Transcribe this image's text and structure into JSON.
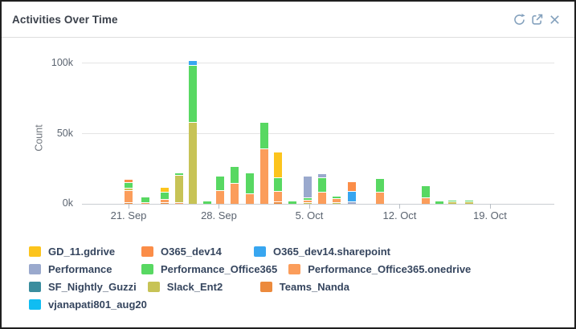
{
  "panel": {
    "title": "Activities Over Time",
    "actions": [
      {
        "icon": "refresh-icon"
      },
      {
        "icon": "export-icon"
      },
      {
        "icon": "close-icon"
      }
    ]
  },
  "chart_data": {
    "type": "bar",
    "stacked": true,
    "title": "Activities Over Time",
    "xlabel": "",
    "ylabel": "Count",
    "units": "thousands",
    "ylim_k": [
      0,
      105
    ],
    "grid": true,
    "legend_position": "bottom",
    "yticks": [
      {
        "label": "0k",
        "value_k": 0
      },
      {
        "label": "50k",
        "value_k": 50
      },
      {
        "label": "100k",
        "value_k": 100
      }
    ],
    "xticks": [
      {
        "label": "21. Sep",
        "day": 0
      },
      {
        "label": "28. Sep",
        "day": 7
      },
      {
        "label": "5. Oct",
        "day": 14
      },
      {
        "label": "12. Oct",
        "day": 21
      },
      {
        "label": "19. Oct",
        "day": 28
      }
    ],
    "series": [
      {
        "label": "GD_11.gdrive",
        "color": "#fcc41d"
      },
      {
        "label": "O365_dev14",
        "color": "#fb8d48"
      },
      {
        "label": "O365_dev14.sharepoint",
        "color": "#38a6f0"
      },
      {
        "label": "Performance",
        "color": "#9aa9cd"
      },
      {
        "label": "Performance_Office365",
        "color": "#58d862"
      },
      {
        "label": "Performance_Office365.onedrive",
        "color": "#fb9d5b"
      },
      {
        "label": "SF_Nightly_Guzzi",
        "color": "#3a8d9e"
      },
      {
        "label": "Slack_Ent2",
        "color": "#c7c356"
      },
      {
        "label": "Teams_Nanda",
        "color": "#ec8a3d"
      },
      {
        "label": "vjanapati801_aug20",
        "color": "#10bdf2"
      }
    ],
    "legend_rows": [
      [
        "GD_11.gdrive",
        "O365_dev14",
        "O365_dev14.sharepoint"
      ],
      [
        "Performance",
        "Performance_Office365",
        "Performance_Office365.onedrive"
      ],
      [
        "SF_Nightly_Guzzi",
        "Slack_Ent2",
        "Teams_Nanda"
      ],
      [
        "vjanapati801_aug20"
      ]
    ],
    "bars": [
      {
        "date": "21 Sep",
        "day": 0,
        "segments": [
          [
            "Teams_Nanda",
            0.8
          ],
          [
            "Performance_Office365.onedrive",
            8
          ],
          [
            "Slack_Ent2",
            0.8
          ],
          [
            "Performance_Office365",
            3.5
          ],
          [
            "O365_dev14",
            1.5
          ]
        ]
      },
      {
        "date": "22 Sep",
        "day": 1.3,
        "segments": [
          [
            "Performance_Office365.onedrive",
            0.5
          ],
          [
            "Performance_Office365",
            3.5
          ]
        ]
      },
      {
        "date": "24 Sep",
        "day": 2.8,
        "segments": [
          [
            "Teams_Nanda",
            0.8
          ],
          [
            "Performance_Office365.onedrive",
            1.4
          ],
          [
            "Performance_Office365",
            4.5
          ],
          [
            "GD_11.gdrive",
            3
          ]
        ]
      },
      {
        "date": "25 Sep",
        "day": 3.9,
        "segments": [
          [
            "Performance_Office365.onedrive",
            0.6
          ],
          [
            "Slack_Ent2",
            19
          ],
          [
            "Performance_Office365",
            1.2
          ]
        ]
      },
      {
        "date": "26 Sep",
        "day": 5,
        "segments": [
          [
            "Slack_Ent2",
            58
          ],
          [
            "Performance_Office365",
            40
          ],
          [
            "O365_dev14.sharepoint",
            2.5
          ]
        ]
      },
      {
        "date": "27 Sep",
        "day": 6.1,
        "segments": [
          [
            "Performance_Office365",
            1.5
          ]
        ]
      },
      {
        "date": "28 Sep",
        "day": 7.1,
        "segments": [
          [
            "Performance_Office365.onedrive",
            9
          ],
          [
            "Performance_Office365",
            10
          ]
        ]
      },
      {
        "date": "29 Sep",
        "day": 8.2,
        "segments": [
          [
            "Performance_Office365.onedrive",
            14.5
          ],
          [
            "Performance_Office365",
            11
          ]
        ]
      },
      {
        "date": "30 Sep",
        "day": 9.4,
        "segments": [
          [
            "Performance_Office365.onedrive",
            7
          ],
          [
            "Performance_Office365",
            14
          ]
        ]
      },
      {
        "date": "1 Oct",
        "day": 10.5,
        "segments": [
          [
            "Performance_Office365.onedrive",
            39
          ],
          [
            "Performance_Office365",
            18
          ]
        ]
      },
      {
        "date": "2 Oct",
        "day": 11.6,
        "segments": [
          [
            "Teams_Nanda",
            1
          ],
          [
            "Performance_Office365.onedrive",
            7
          ],
          [
            "Performance_Office365",
            9
          ],
          [
            "GD_11.gdrive",
            18
          ]
        ]
      },
      {
        "date": "3 Oct",
        "day": 12.7,
        "segments": [
          [
            "Performance_Office365",
            1.5
          ]
        ]
      },
      {
        "date": "5 Oct",
        "day": 13.9,
        "segments": [
          [
            "Slack_Ent2",
            0.8
          ],
          [
            "Performance_Office365.onedrive",
            0.8
          ],
          [
            "Performance_Office365",
            1
          ],
          [
            "Performance",
            15
          ]
        ]
      },
      {
        "date": "6 Oct",
        "day": 15,
        "segments": [
          [
            "Performance_Office365.onedrive",
            8
          ],
          [
            "Performance_Office365",
            10
          ],
          [
            "Performance",
            2
          ]
        ]
      },
      {
        "date": "7 Oct",
        "day": 16.1,
        "segments": [
          [
            "Slack_Ent2",
            0.6
          ],
          [
            "Performance_Office365.onedrive",
            2.4
          ],
          [
            "Performance_Office365",
            1
          ]
        ]
      },
      {
        "date": "8 Oct",
        "day": 17.3,
        "segments": [
          [
            "Performance",
            1.2
          ],
          [
            "O365_dev14.sharepoint",
            7
          ],
          [
            "O365_dev14",
            6
          ]
        ]
      },
      {
        "date": "10 Oct",
        "day": 19.5,
        "segments": [
          [
            "Performance_Office365.onedrive",
            8
          ],
          [
            "Performance_Office365",
            9
          ]
        ]
      },
      {
        "date": "14 Oct",
        "day": 23,
        "segments": [
          [
            "Performance_Office365.onedrive",
            4
          ],
          [
            "Performance_Office365",
            8
          ]
        ]
      },
      {
        "date": "15 Oct",
        "day": 24.1,
        "segments": [
          [
            "Performance_Office365",
            1.5
          ]
        ]
      },
      {
        "date": "16 Oct",
        "day": 25.1,
        "segments": [
          [
            "Slack_Ent2",
            1
          ],
          [
            "Performance_Office365",
            0.5
          ]
        ]
      },
      {
        "date": "17 Oct",
        "day": 26.4,
        "segments": [
          [
            "Slack_Ent2",
            1.2
          ],
          [
            "Performance_Office365",
            0.8
          ]
        ]
      }
    ]
  }
}
